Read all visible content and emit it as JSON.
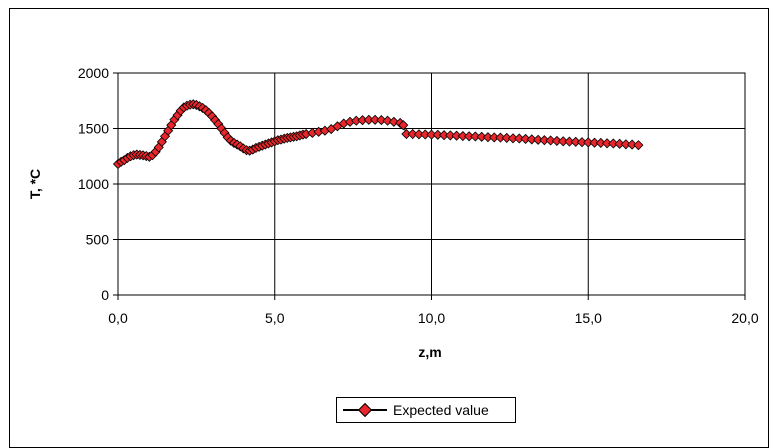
{
  "chart_data": {
    "type": "scatter",
    "title": "",
    "xlabel": "z,m",
    "ylabel": "T, *C",
    "xlim": [
      0,
      20
    ],
    "ylim": [
      0,
      2000
    ],
    "x_ticks": [
      "0,0",
      "5,0",
      "10,0",
      "15,0",
      "20,0"
    ],
    "y_ticks": [
      "0",
      "500",
      "1000",
      "1500",
      "2000"
    ],
    "grid": true,
    "legend_position": "bottom",
    "colors": {
      "marker_fill": "#e8262c",
      "marker_edge": "#000000",
      "line": "#000000",
      "grid": "#000000"
    },
    "series": [
      {
        "name": "Expected value",
        "marker": "diamond",
        "x": [
          0.0,
          0.1,
          0.2,
          0.3,
          0.4,
          0.5,
          0.6,
          0.7,
          0.8,
          0.9,
          1.0,
          1.1,
          1.2,
          1.3,
          1.4,
          1.5,
          1.6,
          1.7,
          1.8,
          1.9,
          2.0,
          2.1,
          2.2,
          2.3,
          2.4,
          2.5,
          2.6,
          2.7,
          2.8,
          2.9,
          3.0,
          3.1,
          3.2,
          3.3,
          3.4,
          3.5,
          3.6,
          3.7,
          3.8,
          3.9,
          4.0,
          4.1,
          4.2,
          4.3,
          4.4,
          4.5,
          4.6,
          4.7,
          4.8,
          4.9,
          5.0,
          5.1,
          5.2,
          5.3,
          5.4,
          5.5,
          5.6,
          5.7,
          5.8,
          5.9,
          6.0,
          6.2,
          6.4,
          6.6,
          6.8,
          7.0,
          7.2,
          7.4,
          7.6,
          7.8,
          8.0,
          8.2,
          8.4,
          8.6,
          8.8,
          9.0,
          9.1,
          9.2,
          9.4,
          9.6,
          9.8,
          10.0,
          10.2,
          10.4,
          10.6,
          10.8,
          11.0,
          11.2,
          11.4,
          11.6,
          11.8,
          12.0,
          12.2,
          12.4,
          12.6,
          12.8,
          13.0,
          13.2,
          13.4,
          13.6,
          13.8,
          14.0,
          14.2,
          14.4,
          14.6,
          14.8,
          15.0,
          15.2,
          15.4,
          15.6,
          15.8,
          16.0,
          16.2,
          16.4,
          16.6
        ],
        "y": [
          1180,
          1200,
          1215,
          1235,
          1250,
          1260,
          1265,
          1262,
          1258,
          1252,
          1245,
          1260,
          1290,
          1330,
          1380,
          1430,
          1480,
          1530,
          1580,
          1620,
          1660,
          1690,
          1705,
          1715,
          1718,
          1712,
          1700,
          1685,
          1665,
          1640,
          1610,
          1575,
          1540,
          1500,
          1460,
          1420,
          1390,
          1370,
          1355,
          1340,
          1320,
          1305,
          1300,
          1310,
          1325,
          1335,
          1345,
          1355,
          1365,
          1375,
          1385,
          1395,
          1400,
          1408,
          1415,
          1420,
          1425,
          1430,
          1438,
          1445,
          1450,
          1460,
          1470,
          1480,
          1495,
          1520,
          1545,
          1560,
          1570,
          1575,
          1578,
          1578,
          1576,
          1570,
          1560,
          1550,
          1530,
          1450,
          1450,
          1448,
          1446,
          1445,
          1443,
          1440,
          1438,
          1435,
          1432,
          1430,
          1428,
          1425,
          1422,
          1420,
          1418,
          1415,
          1412,
          1410,
          1406,
          1402,
          1398,
          1395,
          1392,
          1388,
          1385,
          1382,
          1380,
          1377,
          1375,
          1372,
          1370,
          1367,
          1365,
          1362,
          1358,
          1355,
          1350
        ]
      }
    ]
  }
}
